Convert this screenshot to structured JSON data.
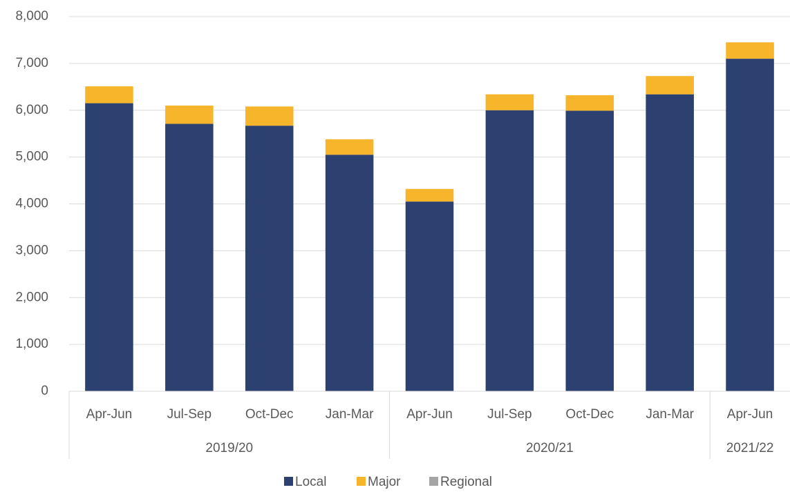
{
  "chart_data": {
    "type": "stacked_bar",
    "groups": [
      {
        "name": "2019/20",
        "categories": [
          "Apr-Jun",
          "Jul-Sep",
          "Oct-Dec",
          "Jan-Mar"
        ]
      },
      {
        "name": "2020/21",
        "categories": [
          "Apr-Jun",
          "Jul-Sep",
          "Oct-Dec",
          "Jan-Mar"
        ]
      },
      {
        "name": "2021/22",
        "categories": [
          "Apr-Jun"
        ]
      }
    ],
    "series": [
      {
        "name": "Local",
        "color": "#2c4170",
        "values": [
          6150,
          5710,
          5670,
          5050,
          4050,
          6000,
          5990,
          6340,
          7100
        ]
      },
      {
        "name": "Major",
        "color": "#f6b52b",
        "values": [
          360,
          390,
          410,
          330,
          270,
          340,
          330,
          390,
          350
        ]
      },
      {
        "name": "Regional",
        "color": "#a5a5a5",
        "values": [
          0,
          0,
          0,
          0,
          0,
          0,
          0,
          0,
          0
        ]
      }
    ],
    "ylim": [
      0,
      8000
    ],
    "yticks": [
      0,
      {
        "value": 1000,
        "label": "1,000"
      },
      {
        "value": 2000,
        "label": "2,000"
      },
      {
        "value": 3000,
        "label": "3,000"
      },
      {
        "value": 4000,
        "label": "4,000"
      },
      {
        "value": 5000,
        "label": "5,000"
      },
      {
        "value": 6000,
        "label": "6,000"
      },
      {
        "value": 7000,
        "label": "7,000"
      },
      {
        "value": 8000,
        "label": "8,000"
      }
    ],
    "grid": true,
    "legend": "bottom"
  }
}
